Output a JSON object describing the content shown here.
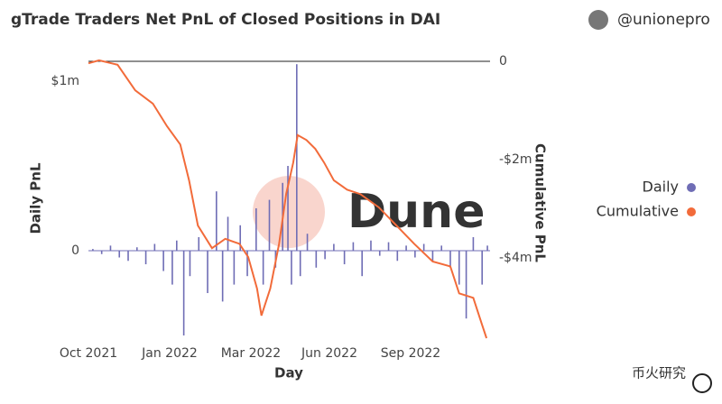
{
  "chart_data": {
    "type": "bar+line",
    "title": "gTrade Traders Net PnL of Closed Positions in DAI",
    "author": "@unionepro",
    "watermark": "Dune",
    "caption": "币火研究",
    "xlabel": "Day",
    "ylabel": "Daily PnL",
    "y2label": "Cumulative PnL",
    "xlim": [
      0,
      455
    ],
    "xticks": [
      {
        "value": 0,
        "label": "Oct 2021"
      },
      {
        "value": 92,
        "label": "Jan 2022"
      },
      {
        "value": 184,
        "label": "Mar 2022"
      },
      {
        "value": 273,
        "label": "Jun 2022"
      },
      {
        "value": 365,
        "label": "Sep 2022"
      }
    ],
    "ylim": [
      -516000,
      1117000
    ],
    "yticks": [
      {
        "value": 1000000,
        "label": "$1m"
      },
      0
    ],
    "y2lim": [
      -5630000,
      0
    ],
    "y2ticks": [
      0,
      {
        "value": -2000000,
        "label": "-$2m"
      },
      {
        "value": -4000000,
        "label": "-$4m"
      }
    ],
    "grid": false,
    "legend": "right",
    "series": [
      {
        "name": "Daily",
        "type": "bar",
        "color": "#6f6db5",
        "x": [
          5,
          15,
          25,
          35,
          45,
          55,
          65,
          75,
          85,
          95,
          100,
          108,
          115,
          125,
          135,
          145,
          152,
          158,
          165,
          172,
          180,
          190,
          198,
          205,
          212,
          220,
          226,
          230,
          236,
          240,
          248,
          258,
          268,
          278,
          290,
          300,
          310,
          320,
          330,
          340,
          350,
          360,
          370,
          380,
          390,
          400,
          410,
          420,
          428,
          436,
          446,
          452
        ],
        "values": [
          10000,
          -20000,
          30000,
          -40000,
          -60000,
          20000,
          -80000,
          40000,
          -120000,
          -200000,
          60000,
          -500000,
          -150000,
          80000,
          -250000,
          350000,
          -300000,
          200000,
          -200000,
          150000,
          -150000,
          250000,
          -200000,
          300000,
          -100000,
          400000,
          500000,
          -200000,
          1100000,
          -150000,
          100000,
          -100000,
          -50000,
          40000,
          -80000,
          50000,
          -150000,
          60000,
          -30000,
          50000,
          -60000,
          30000,
          -40000,
          40000,
          -60000,
          30000,
          -100000,
          -200000,
          -400000,
          80000,
          -200000,
          30000
        ]
      },
      {
        "name": "Cumulative",
        "type": "line",
        "axis": "y2",
        "color": "#f26b3a",
        "x": [
          0,
          12,
          33,
          53,
          73,
          89,
          104,
          114,
          124,
          140,
          155,
          171,
          181,
          191,
          196,
          206,
          216,
          224,
          232,
          237,
          247,
          257,
          267,
          278,
          293,
          308,
          329,
          349,
          369,
          390,
          410,
          420,
          436,
          446,
          451
        ],
        "values": [
          -40000,
          20000,
          -70000,
          -590000,
          -860000,
          -1320000,
          -1690000,
          -2420000,
          -3340000,
          -3800000,
          -3610000,
          -3710000,
          -3980000,
          -4620000,
          -5170000,
          -4620000,
          -3710000,
          -2700000,
          -2060000,
          -1500000,
          -1600000,
          -1780000,
          -2060000,
          -2420000,
          -2610000,
          -2700000,
          -2970000,
          -3340000,
          -3710000,
          -4070000,
          -4170000,
          -4720000,
          -4810000,
          -5360000,
          -5630000
        ]
      }
    ]
  }
}
